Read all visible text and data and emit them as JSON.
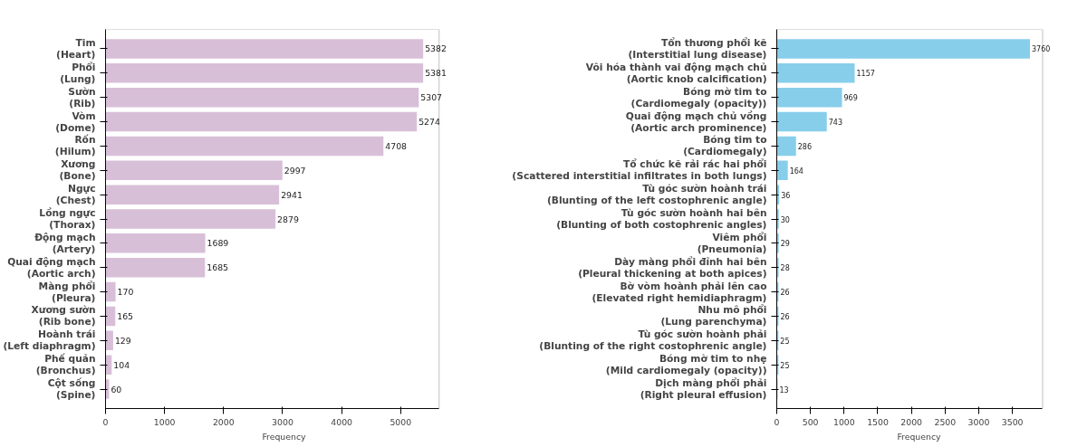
{
  "chart_data": [
    {
      "type": "bar",
      "orientation": "horizontal",
      "xlabel": "Frequency",
      "data_labels": true,
      "grid": false,
      "categories": [
        "Tim\n(Heart)",
        "Phổi\n(Lung)",
        "Sườn\n(Rib)",
        "Vòm\n(Dome)",
        "Rốn\n(Hilum)",
        "Xương\n(Bone)",
        "Ngực\n(Chest)",
        "Lồng ngực\n(Thorax)",
        "Động mạch\n(Artery)",
        "Quai động mạch\n(Aortic arch)",
        "Màng phổi\n(Pleura)",
        "Xương sườn\n(Rib bone)",
        "Hoành trái\n(Left diaphragm)",
        "Phế quản\n(Bronchus)",
        "Cột sống\n(Spine)"
      ],
      "values": [
        5382,
        5381,
        5307,
        5274,
        4708,
        2997,
        2941,
        2879,
        1689,
        1685,
        170,
        165,
        129,
        104,
        60
      ],
      "color": "#d8bfd8",
      "xlim": [
        0,
        5651
      ],
      "xticks": [
        0,
        1000,
        2000,
        3000,
        4000,
        5000
      ]
    },
    {
      "type": "bar",
      "orientation": "horizontal",
      "xlabel": "Frequency",
      "data_labels": true,
      "grid": false,
      "categories": [
        "Tổn thương phổi kẽ\n(Interstitial lung disease)",
        "Vôi hóa thành vai động mạch chủ\n(Aortic knob calcification)",
        "Bóng mờ tim to\n(Cardiomegaly (opacity))",
        "Quai động mạch chủ vồng\n(Aortic arch prominence)",
        "Bóng tim to\n(Cardiomegaly)",
        "Tổ chức kẽ rải rác hai phổi\n(Scattered interstitial infiltrates in both lungs)",
        "Tù góc sườn hoành trái\n(Blunting of the left costophrenic angle)",
        "Tù góc sườn hoành hai bên\n(Blunting of both costophrenic angles)",
        "Viêm phổi\n(Pneumonia)",
        "Dày màng phổi đỉnh hai bên\n(Pleural thickening at both apices)",
        "Bờ vòm hoành phải lên cao\n(Elevated right hemidiaphragm)",
        "Nhu mô phổi\n(Lung parenchyma)",
        "Tù góc sườn hoành phải\n(Blunting of the right costophrenic angle)",
        "Bóng mờ tim to nhẹ\n(Mild cardiomegaly (opacity))",
        "Dịch màng phổi phải\n(Right pleural effusion)"
      ],
      "values": [
        3760,
        1157,
        969,
        743,
        286,
        164,
        36,
        30,
        29,
        28,
        26,
        26,
        25,
        25,
        13
      ],
      "color": "#87ceeb",
      "xlim": [
        0,
        3948
      ],
      "xticks": [
        0,
        500,
        1000,
        1500,
        2000,
        2500,
        3000,
        3500
      ]
    }
  ]
}
